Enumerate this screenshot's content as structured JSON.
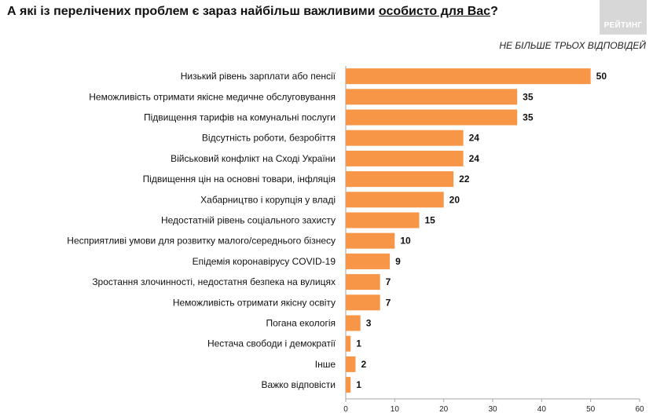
{
  "header": {
    "title_main": "А які із перелічених проблем є зараз найбільш важливими ",
    "title_emph": "особисто для Вас",
    "title_end": "?",
    "subtitle": "НЕ БІЛЬШЕ ТРЬОХ ВІДПОВІДЕЙ",
    "logo_text": "РЕЙТИНГ"
  },
  "colors": {
    "bar": "#F79646",
    "axis": "#a6a6a6",
    "grid": "#d9d9d9"
  },
  "chart_data": {
    "type": "bar",
    "orientation": "horizontal",
    "categories": [
      "Низький рівень зарплати або пенсії",
      "Неможливість отримати якісне медичне обслуговування",
      "Підвищення тарифів на комунальні послуги",
      "Відсутність роботи, безробіття",
      "Військовий конфлікт на Сході України",
      "Підвищення цін на основні товари, інфляція",
      "Хабарництво і корупція у владі",
      "Недостатній рівень соціального захисту",
      "Несприятливі умови для розвитку малого/середнього бізнесу",
      "Епідемія коронавірусу COVID-19",
      "Зростання злочинності, недостатня безпека на вулицях",
      "Неможливість отримати якісну освіту",
      "Погана екологія",
      "Нестача свободи і демократії",
      "Інше",
      "Важко відповісти"
    ],
    "values": [
      50,
      35,
      35,
      24,
      24,
      22,
      20,
      15,
      10,
      9,
      7,
      7,
      3,
      1,
      2,
      1
    ],
    "xlim": [
      0,
      60
    ],
    "xticks": [
      0,
      10,
      20,
      30,
      40,
      50,
      60
    ],
    "grid": false,
    "legend": "none"
  }
}
